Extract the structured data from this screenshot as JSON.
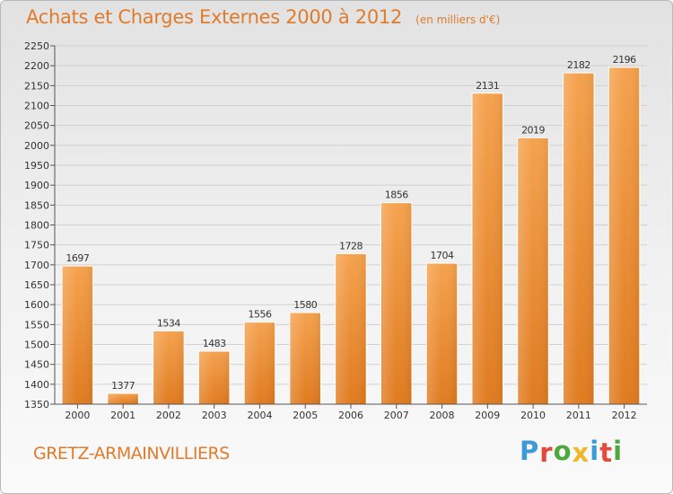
{
  "chart_data": {
    "type": "bar",
    "title": "Achats et Charges Externes 2000 à 2012",
    "unit": "(en milliers d'€)",
    "categories": [
      "2000",
      "2001",
      "2002",
      "2003",
      "2004",
      "2005",
      "2006",
      "2007",
      "2008",
      "2009",
      "2010",
      "2011",
      "2012"
    ],
    "values": [
      1697,
      1377,
      1534,
      1483,
      1556,
      1580,
      1728,
      1856,
      1704,
      2131,
      2019,
      2182,
      2196
    ],
    "value_labels": [
      "1697",
      "1377",
      "1534",
      "1483",
      "1556",
      "1580",
      "1728",
      "1856",
      "1704",
      "2131",
      "2019",
      "2182",
      "2196"
    ],
    "ylim": [
      1350,
      2250
    ],
    "yticks": [
      "1350",
      "1400",
      "1450",
      "1500",
      "1550",
      "1600",
      "1650",
      "1700",
      "1750",
      "1800",
      "1850",
      "1900",
      "1950",
      "2000",
      "2050",
      "2100",
      "2150",
      "2200",
      "2250"
    ],
    "grid": true,
    "bar_color_top": "#f5a24e",
    "bar_color_bottom": "#e07b20"
  },
  "footer": {
    "place": "GRETZ-ARMAINVILLIERS",
    "logo_letters": [
      "P",
      "r",
      "o",
      "x",
      "i",
      "t",
      "i"
    ],
    "logo_colors": [
      "#3c9ad6",
      "#e24a3b",
      "#4fa83d",
      "#f0b92b",
      "#3c9ad6",
      "#e24a3b",
      "#4fa83d"
    ]
  },
  "colors": {
    "accent": "#e07b2b"
  }
}
